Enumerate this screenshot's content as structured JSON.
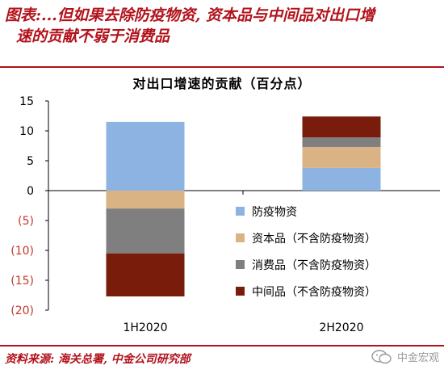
{
  "header": {
    "title_line1": "图表:...但如果去除防疫物资, 资本品与中间品对出口增",
    "title_line2": "速的贡献不弱于消费品"
  },
  "footer": {
    "source": "资料来源: 海关总署, 中金公司研究部",
    "watermark": "中金宏观"
  },
  "colors": {
    "accent": "#b2121b",
    "防疫物资": "#8db3e2",
    "资本品": "#d9b384",
    "消费品": "#7f7f7f",
    "中间品": "#7a1c0c"
  },
  "chart_data": {
    "type": "bar",
    "stacked": true,
    "title": "对出口增速的贡献（百分点）",
    "xlabel": "",
    "ylabel": "",
    "categories": [
      "1H2020",
      "2H2020"
    ],
    "ylim": [
      -20,
      15
    ],
    "yticks": [
      15,
      10,
      5,
      0,
      -5,
      -10,
      -15,
      -20
    ],
    "ytick_labels": [
      "15",
      "10",
      "5",
      "0",
      "(5)",
      "(10)",
      "(15)",
      "(20)"
    ],
    "series": [
      {
        "name": "防疫物资",
        "values": [
          11.5,
          3.8
        ]
      },
      {
        "name": "资本品（不含防疫物资）",
        "values": [
          -3.0,
          3.5
        ]
      },
      {
        "name": "消费品（不含防疫物资）",
        "values": [
          -7.5,
          1.6
        ]
      },
      {
        "name": "中间品（不含防疫物资）",
        "values": [
          -7.2,
          3.5
        ]
      }
    ],
    "legend_position": "lower-right"
  }
}
